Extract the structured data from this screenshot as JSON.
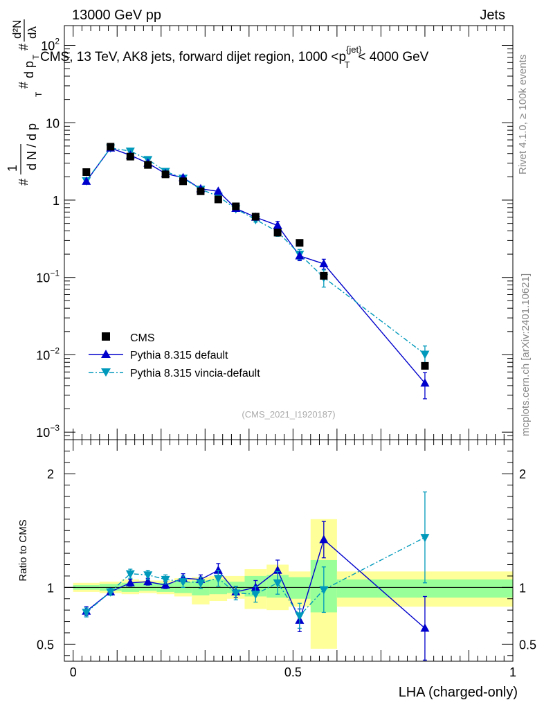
{
  "header": {
    "left": "13000 GeV pp",
    "right": "Jets"
  },
  "side_labels": {
    "rivet": "Rivet 4.1.0, ≥ 100k events",
    "mcplots": "mcplots.cern.ch [arXiv:2401.10621]"
  },
  "colors": {
    "cms": "#000000",
    "pythia_default": "#0000cc",
    "pythia_vincia": "#0099bb",
    "band_outer": "#ffff99",
    "band_inner": "#99ff99"
  },
  "chart_data": [
    {
      "type": "scatter",
      "scale": "log",
      "title": "CMS, 13 TeV, AK8 jets, forward dijet region, 1000 <p_T^{jet}< 4000 GeV",
      "title_parts": {
        "prefix": "CMS, 13 TeV, AK8 jets, forward dijet region, 1000 <p",
        "sup": "{jet}",
        "sub": "T",
        "suffix": "< 4000 GeV"
      },
      "ylabel_parts": {
        "p1": "#",
        "p2": "1",
        "p3": "d N / d p",
        "p4": "T",
        "p5": "#",
        "p6": "d p",
        "p7": "T",
        "p8": "#",
        "p9": "d²N",
        "p10": "dλ"
      },
      "ylim": [
        0.0008,
        180
      ],
      "yticks": [
        {
          "value": 0.001,
          "base": "10",
          "exp": "−3"
        },
        {
          "value": 0.01,
          "base": "10",
          "exp": "−2"
        },
        {
          "value": 0.1,
          "base": "10",
          "exp": "−1"
        },
        {
          "value": 1,
          "base": "1",
          "exp": ""
        },
        {
          "value": 10,
          "base": "10",
          "exp": ""
        },
        {
          "value": 100,
          "base": "10",
          "exp": "2"
        }
      ],
      "watermark": "(CMS_2021_I1920187)",
      "legend": [
        "CMS",
        "Pythia 8.315 default",
        "Pythia 8.315 vincia-default"
      ],
      "x": [
        0.03,
        0.085,
        0.13,
        0.17,
        0.21,
        0.25,
        0.29,
        0.33,
        0.37,
        0.415,
        0.465,
        0.515,
        0.57,
        0.8
      ],
      "series": [
        {
          "name": "CMS",
          "marker": "square",
          "values": [
            2.3,
            4.9,
            3.65,
            2.85,
            2.15,
            1.75,
            1.3,
            1.02,
            0.83,
            0.61,
            0.38,
            0.28,
            0.105,
            0.0072
          ]
        },
        {
          "name": "Pythia 8.315 default",
          "marker": "triangle-up",
          "values": [
            1.75,
            4.7,
            3.8,
            3.0,
            2.2,
            1.95,
            1.4,
            1.3,
            0.78,
            0.6,
            0.47,
            0.19,
            0.15,
            0.0043
          ],
          "errors": [
            0.05,
            0.1,
            0.1,
            0.08,
            0.06,
            0.06,
            0.05,
            0.06,
            0.04,
            0.04,
            0.06,
            0.025,
            0.022,
            0.0016
          ]
        },
        {
          "name": "Pythia 8.315 vincia-default",
          "marker": "triangle-down",
          "values": [
            1.78,
            4.72,
            4.3,
            3.35,
            2.35,
            1.92,
            1.38,
            1.12,
            0.77,
            0.56,
            0.39,
            0.2,
            0.1,
            0.0102
          ],
          "errors": [
            0.05,
            0.1,
            0.12,
            0.09,
            0.07,
            0.06,
            0.06,
            0.06,
            0.05,
            0.04,
            0.05,
            0.03,
            0.025,
            0.0028
          ]
        }
      ]
    },
    {
      "type": "scatter",
      "title": "",
      "xlabel": "LHA (charged-only)",
      "ylabel": "Ratio to CMS",
      "xlim": [
        -0.02,
        1.0
      ],
      "xticks": [
        {
          "value": 0,
          "label": "0"
        },
        {
          "value": 0.5,
          "label": "0.5"
        },
        {
          "value": 1,
          "label": "1"
        }
      ],
      "ylim": [
        0.35,
        2.3
      ],
      "yticks": [
        {
          "value": 0.5,
          "label": "0.5"
        },
        {
          "value": 1,
          "label": "1"
        },
        {
          "value": 2,
          "label": "2"
        }
      ],
      "bands": [
        {
          "x0": 0.0,
          "x1": 0.06,
          "outer": [
            0.96,
            1.04
          ],
          "inner": [
            0.98,
            1.02
          ]
        },
        {
          "x0": 0.06,
          "x1": 0.11,
          "outer": [
            0.95,
            1.05
          ],
          "inner": [
            0.97,
            1.03
          ]
        },
        {
          "x0": 0.11,
          "x1": 0.15,
          "outer": [
            0.94,
            1.07
          ],
          "inner": [
            0.96,
            1.04
          ]
        },
        {
          "x0": 0.15,
          "x1": 0.19,
          "outer": [
            0.95,
            1.06
          ],
          "inner": [
            0.97,
            1.04
          ]
        },
        {
          "x0": 0.19,
          "x1": 0.23,
          "outer": [
            0.94,
            1.06
          ],
          "inner": [
            0.96,
            1.04
          ]
        },
        {
          "x0": 0.23,
          "x1": 0.27,
          "outer": [
            0.92,
            1.08
          ],
          "inner": [
            0.95,
            1.05
          ]
        },
        {
          "x0": 0.27,
          "x1": 0.31,
          "outer": [
            0.85,
            1.09
          ],
          "inner": [
            0.93,
            1.06
          ]
        },
        {
          "x0": 0.31,
          "x1": 0.35,
          "outer": [
            0.88,
            1.1
          ],
          "inner": [
            0.94,
            1.07
          ]
        },
        {
          "x0": 0.35,
          "x1": 0.39,
          "outer": [
            0.9,
            1.1
          ],
          "inner": [
            0.95,
            1.05
          ]
        },
        {
          "x0": 0.39,
          "x1": 0.44,
          "outer": [
            0.81,
            1.16
          ],
          "inner": [
            0.92,
            1.1
          ]
        },
        {
          "x0": 0.44,
          "x1": 0.49,
          "outer": [
            0.8,
            1.2
          ],
          "inner": [
            0.91,
            1.11
          ]
        },
        {
          "x0": 0.49,
          "x1": 0.54,
          "outer": [
            0.83,
            1.14
          ],
          "inner": [
            0.9,
            1.09
          ]
        },
        {
          "x0": 0.54,
          "x1": 0.6,
          "outer": [
            0.46,
            1.6
          ],
          "inner": [
            0.78,
            1.24
          ]
        },
        {
          "x0": 0.6,
          "x1": 1.0,
          "outer": [
            0.83,
            1.14
          ],
          "inner": [
            0.91,
            1.07
          ]
        }
      ],
      "series": [
        {
          "name": "Pythia 8.315 default",
          "marker": "triangle-up",
          "values": [
            0.79,
            0.96,
            1.04,
            1.05,
            1.02,
            1.08,
            1.07,
            1.15,
            0.96,
            1.0,
            1.15,
            0.71,
            1.42,
            0.64
          ],
          "errors": [
            0.04,
            0.03,
            0.03,
            0.03,
            0.03,
            0.04,
            0.04,
            0.06,
            0.05,
            0.06,
            0.09,
            0.1,
            0.16,
            0.28
          ]
        },
        {
          "name": "Pythia 8.315 vincia-default",
          "marker": "triangle-down",
          "values": [
            0.78,
            0.96,
            1.12,
            1.11,
            1.07,
            1.05,
            1.04,
            1.08,
            0.95,
            0.94,
            1.04,
            0.75,
            0.98,
            1.44
          ],
          "errors": [
            0.04,
            0.03,
            0.04,
            0.04,
            0.04,
            0.05,
            0.05,
            0.07,
            0.06,
            0.07,
            0.1,
            0.11,
            0.2,
            0.4
          ]
        }
      ]
    }
  ]
}
